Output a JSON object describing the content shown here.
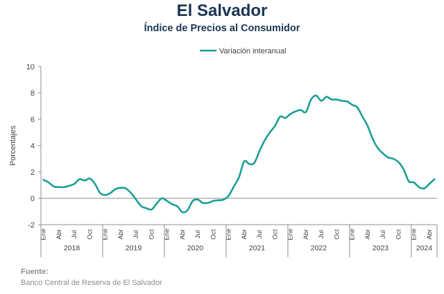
{
  "header": {
    "title": "El Salvador",
    "subtitle": "Índice de Precios al Consumidor"
  },
  "footer": {
    "source_label": "Fuente:",
    "source_text": "Banco Central de Reserva de El Salvador"
  },
  "chart_data": {
    "type": "line",
    "ylabel": "Porcentajes",
    "ylim": [
      -2,
      10
    ],
    "yticks": [
      -2,
      0,
      2,
      4,
      6,
      8,
      10
    ],
    "legend": "top-center",
    "grid": false,
    "month_labels": [
      "Ene",
      "Abr",
      "Jul",
      "Oct"
    ],
    "years": [
      "2018",
      "2019",
      "2020",
      "2021",
      "2022",
      "2023",
      "2024"
    ],
    "series": [
      {
        "name": "Variación interanual",
        "color": "#1a9e96",
        "x": [
          "2018-01",
          "2018-02",
          "2018-03",
          "2018-04",
          "2018-05",
          "2018-06",
          "2018-07",
          "2018-08",
          "2018-09",
          "2018-10",
          "2018-11",
          "2018-12",
          "2019-01",
          "2019-02",
          "2019-03",
          "2019-04",
          "2019-05",
          "2019-06",
          "2019-07",
          "2019-08",
          "2019-09",
          "2019-10",
          "2019-11",
          "2019-12",
          "2020-01",
          "2020-02",
          "2020-03",
          "2020-04",
          "2020-05",
          "2020-06",
          "2020-07",
          "2020-08",
          "2020-09",
          "2020-10",
          "2020-11",
          "2020-12",
          "2021-01",
          "2021-02",
          "2021-03",
          "2021-04",
          "2021-05",
          "2021-06",
          "2021-07",
          "2021-08",
          "2021-09",
          "2021-10",
          "2021-11",
          "2021-12",
          "2022-01",
          "2022-02",
          "2022-03",
          "2022-04",
          "2022-05",
          "2022-06",
          "2022-07",
          "2022-08",
          "2022-09",
          "2022-10",
          "2022-11",
          "2022-12",
          "2023-01",
          "2023-02",
          "2023-03",
          "2023-04",
          "2023-05",
          "2023-06",
          "2023-07",
          "2023-08",
          "2023-09",
          "2023-10",
          "2023-11",
          "2023-12",
          "2024-01",
          "2024-02",
          "2024-03",
          "2024-04",
          "2024-05"
        ],
        "values": [
          1.4,
          1.2,
          0.9,
          0.85,
          0.85,
          0.95,
          1.1,
          1.45,
          1.35,
          1.5,
          1.1,
          0.4,
          0.25,
          0.4,
          0.7,
          0.8,
          0.75,
          0.4,
          -0.1,
          -0.6,
          -0.75,
          -0.85,
          -0.4,
          0.0,
          -0.2,
          -0.45,
          -0.6,
          -1.05,
          -0.9,
          -0.2,
          -0.1,
          -0.35,
          -0.35,
          -0.2,
          -0.15,
          -0.1,
          0.2,
          0.9,
          1.6,
          2.8,
          2.6,
          2.7,
          3.6,
          4.4,
          5.0,
          5.5,
          6.2,
          6.1,
          6.4,
          6.6,
          6.7,
          6.55,
          7.5,
          7.8,
          7.4,
          7.7,
          7.5,
          7.5,
          7.4,
          7.35,
          7.1,
          6.9,
          6.2,
          5.5,
          4.5,
          3.8,
          3.4,
          3.1,
          3.0,
          2.75,
          2.2,
          1.3,
          1.2,
          0.85,
          0.75,
          1.1,
          1.45
        ]
      }
    ]
  }
}
